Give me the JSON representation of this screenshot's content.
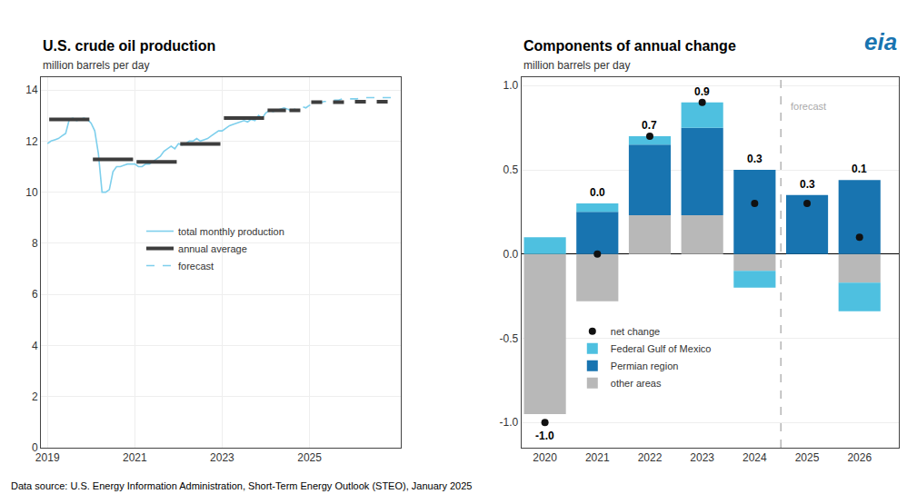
{
  "chart_data": [
    {
      "type": "line",
      "title": "U.S. crude oil production",
      "subtitle": "million barrels per day",
      "xlim": [
        2018.85,
        2027.1
      ],
      "xticks": [
        2019,
        2021,
        2023,
        2025
      ],
      "ylim": [
        0,
        14.5
      ],
      "yticks": [
        0,
        2,
        4,
        6,
        8,
        10,
        12,
        14
      ],
      "grid": true,
      "legend": "center",
      "series": [
        {
          "name": "total monthly production",
          "color": "#7ecfec",
          "x": [
            2019.0,
            2019.083,
            2019.167,
            2019.25,
            2019.333,
            2019.417,
            2019.5,
            2019.583,
            2019.667,
            2019.75,
            2019.833,
            2019.917,
            2020.0,
            2020.083,
            2020.167,
            2020.25,
            2020.333,
            2020.417,
            2020.5,
            2020.583,
            2020.667,
            2020.75,
            2020.833,
            2020.917,
            2021.0,
            2021.083,
            2021.167,
            2021.25,
            2021.333,
            2021.417,
            2021.5,
            2021.583,
            2021.667,
            2021.75,
            2021.833,
            2021.917,
            2022.0,
            2022.083,
            2022.167,
            2022.25,
            2022.333,
            2022.417,
            2022.5,
            2022.583,
            2022.667,
            2022.75,
            2022.833,
            2022.917,
            2023.0,
            2023.083,
            2023.167,
            2023.25,
            2023.333,
            2023.417,
            2023.5,
            2023.583,
            2023.667,
            2023.75,
            2023.833,
            2023.917,
            2024.0,
            2024.083,
            2024.167,
            2024.25,
            2024.333,
            2024.417,
            2024.5
          ],
          "values": [
            11.9,
            12.0,
            12.05,
            12.1,
            12.2,
            12.3,
            12.85,
            12.9,
            12.8,
            12.85,
            12.9,
            12.85,
            12.7,
            12.4,
            11.5,
            10.0,
            10.0,
            10.1,
            10.8,
            11.0,
            11.0,
            11.05,
            11.1,
            11.1,
            11.1,
            11.0,
            11.0,
            11.1,
            11.1,
            11.2,
            11.3,
            11.4,
            11.6,
            11.7,
            11.8,
            11.7,
            11.9,
            11.85,
            11.9,
            12.0,
            12.0,
            12.1,
            12.0,
            12.05,
            12.1,
            12.2,
            12.3,
            12.4,
            12.4,
            12.5,
            12.6,
            12.65,
            12.7,
            12.75,
            12.8,
            12.75,
            12.85,
            12.8,
            13.0,
            12.9,
            13.1,
            13.2,
            13.15,
            13.2,
            13.25,
            13.3,
            13.25
          ]
        },
        {
          "name": "annual average",
          "color": "#3d3d3d",
          "segments": [
            [
              2019.04,
              2019.96,
              12.85
            ],
            [
              2020.04,
              2020.96,
              11.28
            ],
            [
              2021.04,
              2021.96,
              11.19
            ],
            [
              2022.04,
              2022.96,
              11.89
            ],
            [
              2023.04,
              2023.96,
              12.9
            ],
            [
              2024.04,
              2024.46,
              13.2
            ]
          ]
        },
        {
          "name": "forecast",
          "color": "#7ecfec",
          "line_style": "dashed",
          "x": [
            2024.5,
            2024.583,
            2024.667,
            2024.75,
            2024.833,
            2024.917,
            2025.0,
            2025.083,
            2025.167,
            2025.25,
            2025.333,
            2025.417,
            2025.5,
            2025.583,
            2025.667,
            2025.75,
            2025.833,
            2025.917,
            2026.0,
            2026.083,
            2026.167,
            2026.25,
            2026.333,
            2026.417,
            2026.5,
            2026.583,
            2026.667,
            2026.75,
            2026.833,
            2026.917
          ],
          "values": [
            13.25,
            13.2,
            13.25,
            13.3,
            13.35,
            13.3,
            13.4,
            13.45,
            13.5,
            13.5,
            13.55,
            13.55,
            13.6,
            13.6,
            13.6,
            13.65,
            13.65,
            13.65,
            13.65,
            13.65,
            13.7,
            13.7,
            13.7,
            13.7,
            13.7,
            13.7,
            13.7,
            13.7,
            13.7,
            13.7
          ]
        },
        {
          "color": "#3d3d3d",
          "line_style": "dashed",
          "segments": [
            [
              2024.54,
              2024.96,
              13.2
            ],
            [
              2025.04,
              2025.96,
              13.52
            ],
            [
              2026.04,
              2026.96,
              13.54
            ]
          ]
        }
      ]
    },
    {
      "type": "bar",
      "title": "Components of annual change",
      "subtitle": "million barrels per day",
      "stacked": true,
      "data_labels": true,
      "x": [
        2020,
        2021,
        2022,
        2023,
        2024,
        2025,
        2026
      ],
      "xlim": [
        2019.55,
        2026.75
      ],
      "xticks": [
        2020,
        2021,
        2022,
        2023,
        2024,
        2025,
        2026
      ],
      "ylim": [
        -1.15,
        1.05
      ],
      "yticks": [
        {
          "value": -1.0,
          "label": "-1.0"
        },
        {
          "value": -0.5,
          "label": "-0.5"
        },
        {
          "value": 0.0,
          "label": "0.0"
        },
        {
          "value": 0.5,
          "label": "0.5"
        },
        {
          "value": 1.0,
          "label": "1.0"
        }
      ],
      "grid": "y",
      "legend": "lower left",
      "series": [
        {
          "name": "other areas",
          "color": "#b8b8b8",
          "values": [
            -0.95,
            -0.28,
            0.23,
            0.23,
            -0.1,
            0.0,
            -0.17
          ]
        },
        {
          "name": "Permian region",
          "color": "#1874b0",
          "values": [
            0.0,
            0.25,
            0.42,
            0.52,
            0.5,
            0.35,
            0.44
          ]
        },
        {
          "name": "Federal Gulf of Mexico",
          "color": "#4ec0e0",
          "values": [
            0.1,
            0.05,
            0.05,
            0.15,
            -0.1,
            0.0,
            -0.17
          ]
        },
        {
          "name": "net change",
          "type": "scatter",
          "marker": "circle",
          "color": "#111111",
          "values": [
            -1.0,
            0.0,
            0.7,
            0.9,
            0.3,
            0.3,
            0.1
          ],
          "value_labels": [
            "-1.0",
            "0.0",
            "0.7",
            "0.9",
            "0.3",
            "0.3",
            "0.1"
          ]
        }
      ],
      "vlines": [
        {
          "x": 2024.5,
          "color": "#aaaaaa"
        }
      ],
      "annotations": [
        {
          "text": "forecast",
          "x": 2024.65,
          "y": 0.92,
          "color": "#aaaaaa"
        }
      ]
    }
  ],
  "logo": {
    "text": "eia",
    "color": "#1874b0"
  },
  "source": "Data source: U.S. Energy Information Administration, Short-Term Energy Outlook (STEO), January 2025"
}
